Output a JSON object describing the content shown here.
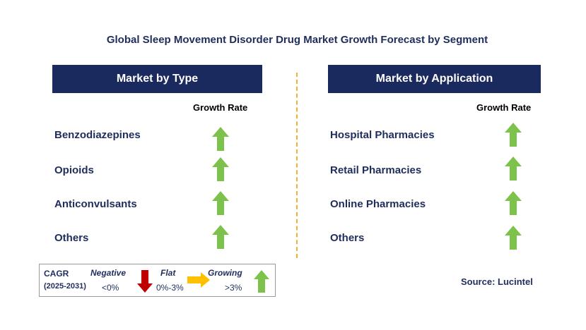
{
  "title": "Global Sleep Movement Disorder Drug Market Growth Forecast by Segment",
  "left_panel": {
    "header": "Market by Type",
    "growth_label": "Growth Rate",
    "rows": [
      {
        "label": "Benzodiazepines",
        "trend": "growing"
      },
      {
        "label": "Opioids",
        "trend": "growing"
      },
      {
        "label": "Anticonvulsants",
        "trend": "growing"
      },
      {
        "label": "Others",
        "trend": "growing"
      }
    ]
  },
  "right_panel": {
    "header": "Market by Application",
    "growth_label": "Growth Rate",
    "rows": [
      {
        "label": "Hospital Pharmacies",
        "trend": "growing"
      },
      {
        "label": "Retail Pharmacies",
        "trend": "growing"
      },
      {
        "label": "Online Pharmacies",
        "trend": "growing"
      },
      {
        "label": "Others",
        "trend": "growing"
      }
    ]
  },
  "legend": {
    "cagr": "CAGR",
    "period": "(2025-2031)",
    "negative_label": "Negative",
    "negative_range": "<0%",
    "flat_label": "Flat",
    "flat_range": "0%-3%",
    "growing_label": "Growing",
    "growing_range": ">3%"
  },
  "source": "Source: Lucintel",
  "colors": {
    "header_bg": "#1a2a5e",
    "text": "#1f2d5c",
    "growing": "#7dc24b",
    "negative": "#c00000",
    "flat": "#ffc000",
    "divider": "#f2b134"
  },
  "icons": {
    "growing": "green-up-arrow-icon",
    "negative": "red-down-arrow-icon",
    "flat": "yellow-right-arrow-icon"
  }
}
